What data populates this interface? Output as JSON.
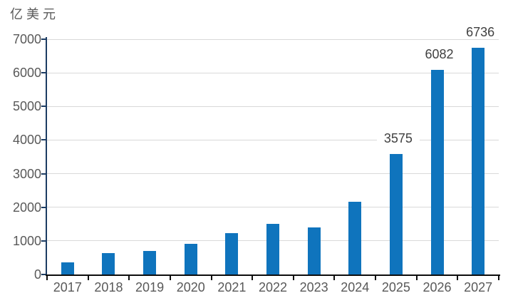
{
  "unit_label": "亿美元",
  "chart_data": {
    "type": "bar",
    "title": "",
    "ylabel": "亿美元",
    "xlabel": "",
    "categories": [
      "2017",
      "2018",
      "2019",
      "2020",
      "2021",
      "2022",
      "2023",
      "2024",
      "2025",
      "2026",
      "2027"
    ],
    "values": [
      370,
      630,
      700,
      910,
      1240,
      1500,
      1390,
      2170,
      3575,
      6082,
      6736
    ],
    "data_labels": [
      null,
      null,
      null,
      null,
      null,
      null,
      null,
      null,
      "3575",
      "6082",
      "6736"
    ],
    "ylim": [
      0,
      7000
    ],
    "yticks": [
      0,
      1000,
      2000,
      3000,
      4000,
      5000,
      6000,
      7000
    ],
    "grid": "horizontal",
    "legend": "none",
    "colors": {
      "bar": "#0f74bd",
      "y_axis": "#1c3c63",
      "x_axis": "#0d0d0d",
      "gridline": "#d9d9d9",
      "tick_label": "#595959",
      "data_label": "#404040"
    }
  }
}
